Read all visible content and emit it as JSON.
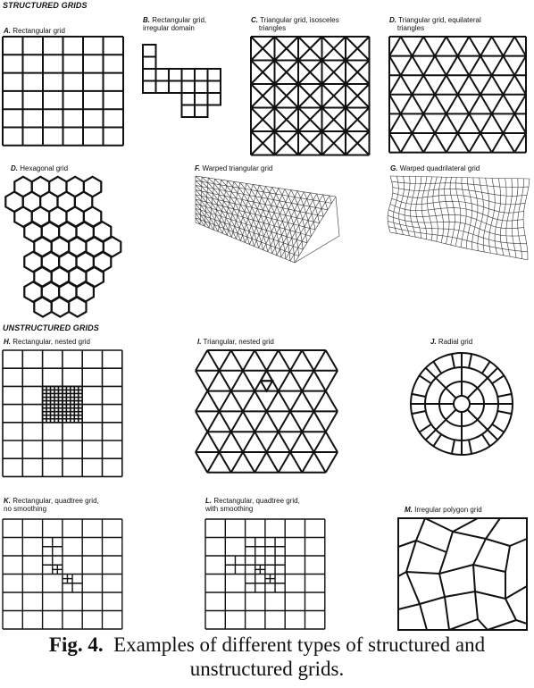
{
  "sections": {
    "structured": "STRUCTURED GRIDS",
    "unstructured": "UNSTRUCTURED GRIDS"
  },
  "panels": [
    {
      "letter": "A.",
      "label": "Rectangular grid"
    },
    {
      "letter": "B.",
      "label": "Rectangular grid,",
      "label2": "irregular domain"
    },
    {
      "letter": "C.",
      "label": "Triangular grid, isosceles",
      "label2": "triangles"
    },
    {
      "letter": "D.",
      "label": "Triangular grid, equilateral",
      "label2": "triangles"
    },
    {
      "letter": "D.",
      "label": "Hexagonal grid"
    },
    {
      "letter": "F.",
      "label": "Warped triangular grid"
    },
    {
      "letter": "G.",
      "label": "Warped quadrilateral grid"
    },
    {
      "letter": "H.",
      "label": "Rectangular, nested grid"
    },
    {
      "letter": "I.",
      "label": "Triangular, nested grid"
    },
    {
      "letter": "J.",
      "label": "Radial grid"
    },
    {
      "letter": "K.",
      "label": "Rectangular, quadtree grid,",
      "label2": "no smoothing"
    },
    {
      "letter": "L.",
      "label": "Rectangular, quadtree grid,",
      "label2": "with smoothing"
    },
    {
      "letter": "M.",
      "label": "Irregular polygon grid"
    }
  ],
  "caption": {
    "fig": "Fig. 4.",
    "line1": "Examples of different types of structured and",
    "line2": "unstructured grids."
  }
}
